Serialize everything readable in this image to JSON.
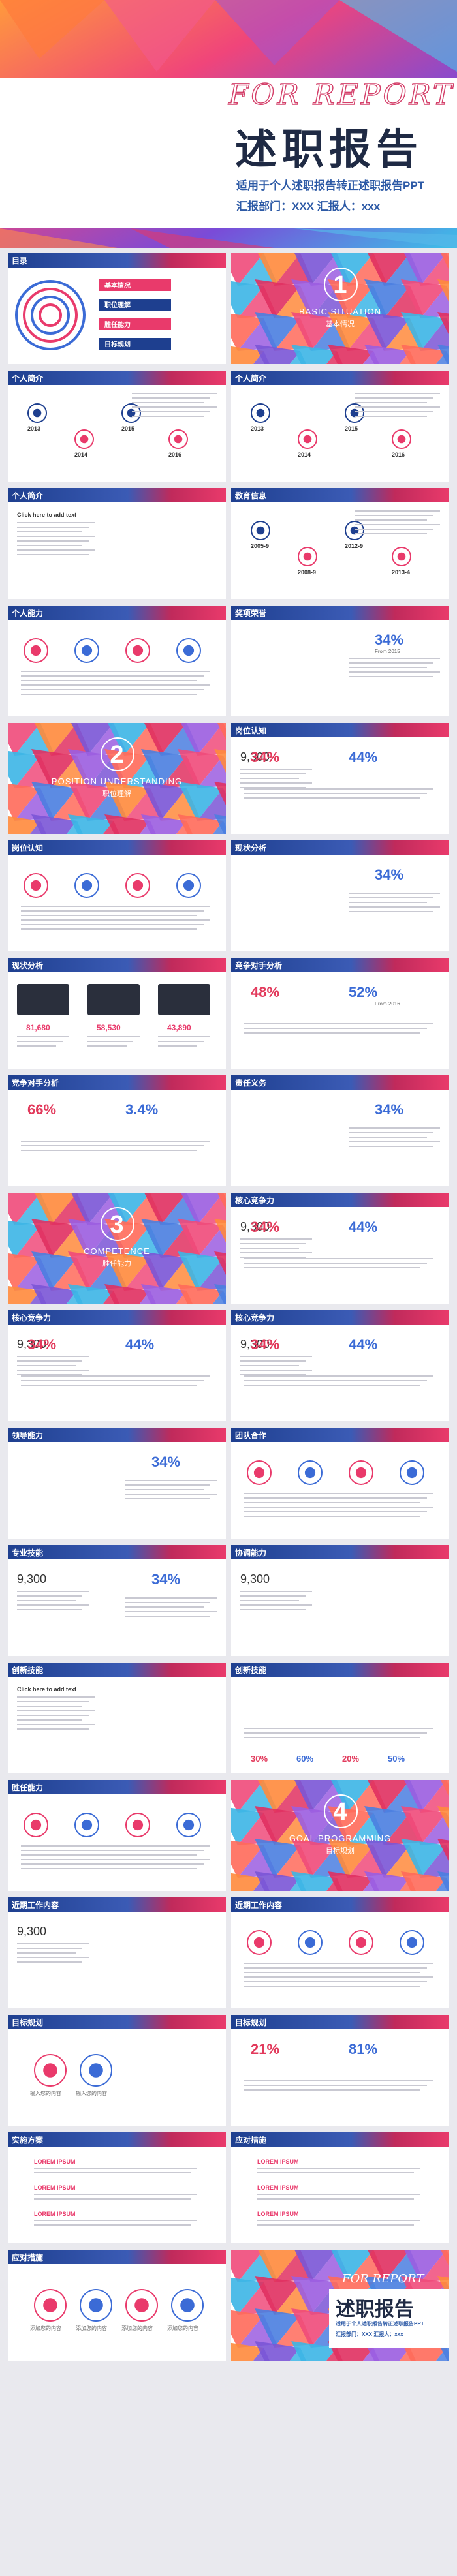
{
  "cover": {
    "en_title": "FOR REPORT",
    "title": "述职报告",
    "subtitle": "适用于个人述职报告转正述职报告PPT",
    "meta": "汇报部门：XXX    汇报人：xxx"
  },
  "colors": {
    "navy": "#1e3f8f",
    "pink": "#e93a6b",
    "blue": "#3b6bd6"
  },
  "slides": [
    {
      "title": "目录",
      "items": [
        "基本情况",
        "职位理解",
        "胜任能力",
        "目标规划"
      ]
    },
    {
      "section_num": "1",
      "section_en": "BASIC SITUATION",
      "section_cn": "基本情况"
    },
    {
      "title": "个人简介",
      "years": [
        "2013",
        "2014",
        "2015",
        "2016"
      ]
    },
    {
      "title": "个人简介",
      "years": [
        "2013",
        "2014",
        "2015",
        "2016"
      ]
    },
    {
      "title": "个人简介",
      "click": "Click here to add text"
    },
    {
      "title": "教育信息",
      "years": [
        "2005-9",
        "2008-9",
        "2012-9",
        "2013-4"
      ]
    },
    {
      "title": "个人能力"
    },
    {
      "title": "奖项荣誉",
      "pct": "34%",
      "from": "From 2015"
    },
    {
      "section_num": "2",
      "section_en": "POSITION UNDERSTANDING",
      "section_cn": "职位理解"
    },
    {
      "title": "岗位认知",
      "num": "9,300",
      "pcts": [
        "34%",
        "44%"
      ]
    },
    {
      "title": "岗位认知"
    },
    {
      "title": "现状分析",
      "pct": "34%"
    },
    {
      "title": "现状分析",
      "nums": [
        "81,680",
        "58,530",
        "43,890"
      ]
    },
    {
      "title": "竞争对手分析",
      "pcts": [
        "48%",
        "52%"
      ],
      "from": "From 2016"
    },
    {
      "title": "竞争对手分析",
      "pcts": [
        "66%",
        "3.4%"
      ]
    },
    {
      "title": "责任义务",
      "pct": "34%"
    },
    {
      "section_num": "3",
      "section_en": "COMPETENCE",
      "section_cn": "胜任能力"
    },
    {
      "title": "核心竞争力",
      "num": "9,300",
      "pcts": [
        "34%",
        "44%"
      ]
    },
    {
      "title": "核心竞争力",
      "num": "9,300",
      "pcts": [
        "34%",
        "44%"
      ]
    },
    {
      "title": "核心竞争力",
      "num": "9,300",
      "pcts": [
        "34%",
        "44%"
      ]
    },
    {
      "title": "领导能力",
      "pct": "34%"
    },
    {
      "title": "团队合作"
    },
    {
      "title": "专业技能",
      "num": "9,300",
      "pct": "34%"
    },
    {
      "title": "协调能力",
      "num": "9,300"
    },
    {
      "title": "创新技能",
      "click": "Click here to add text"
    },
    {
      "title": "创新技能",
      "pcts": [
        "30%",
        "60%",
        "20%",
        "50%"
      ]
    },
    {
      "title": "胜任能力"
    },
    {
      "section_num": "4",
      "section_en": "GOAL PROGRAMMING",
      "section_cn": "目标规划"
    },
    {
      "title": "近期工作内容",
      "num": "9,300"
    },
    {
      "title": "近期工作内容"
    },
    {
      "title": "目标规划",
      "labels": [
        "输入您的内容",
        "输入您的内容"
      ]
    },
    {
      "title": "目标规划",
      "pcts": [
        "21%",
        "81%"
      ]
    },
    {
      "title": "实施方案",
      "tag": "LOREM IPSUM"
    },
    {
      "title": "应对措施",
      "tag": "LOREM IPSUM"
    },
    {
      "title": "应对措施",
      "labels": [
        "添加您的内容",
        "添加您的内容",
        "添加您的内容",
        "添加您的内容"
      ]
    }
  ],
  "end": {
    "en_title": "FOR REPORT",
    "title": "述职报告",
    "subtitle": "适用于个人述职报告转正述职报告PPT",
    "meta": "汇报部门：XXX   汇报人：xxx"
  }
}
